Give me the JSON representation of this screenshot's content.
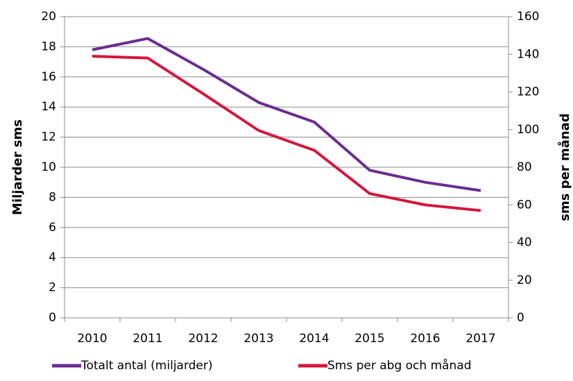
{
  "chart_data": {
    "type": "line",
    "categories": [
      "2010",
      "2011",
      "2012",
      "2013",
      "2014",
      "2015",
      "2016",
      "2017"
    ],
    "series": [
      {
        "name": "Totalt antal (miljarder)",
        "color": "#6a2c91",
        "values": [
          17.8,
          18.55,
          16.5,
          14.3,
          13.0,
          9.8,
          9.0,
          8.45
        ]
      },
      {
        "name": "Sms per abg och månad",
        "color": "#d4163c",
        "axis": "y2",
        "values": [
          139,
          138,
          119,
          99.5,
          89,
          66,
          60,
          57
        ]
      }
    ],
    "ylabel": "Miljarder sms",
    "y2label": "sms per månad",
    "ylim": [
      0,
      20
    ],
    "yticks": [
      0,
      2,
      4,
      6,
      8,
      10,
      12,
      14,
      16,
      18,
      20
    ],
    "y2lim": [
      0,
      160
    ],
    "y2ticks": [
      0,
      20,
      40,
      60,
      80,
      100,
      120,
      140,
      160
    ],
    "grid": true,
    "legend": "bottom"
  }
}
